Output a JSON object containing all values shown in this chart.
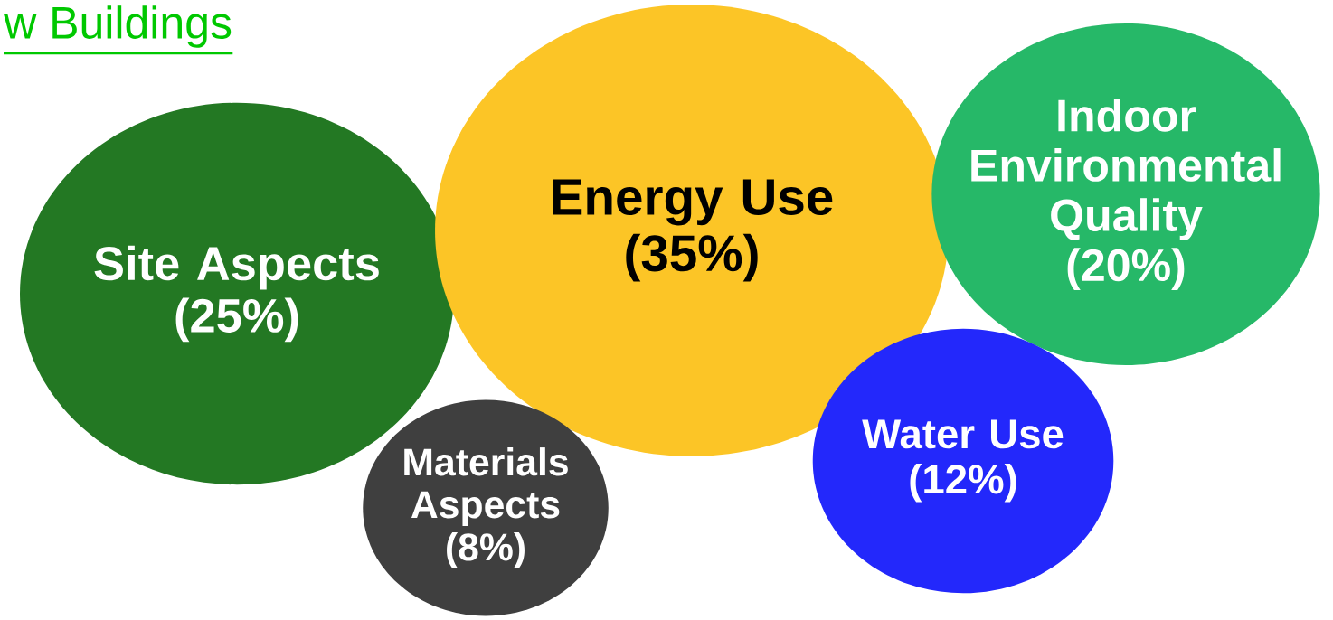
{
  "chart_data": {
    "type": "other",
    "title": "w Buildings",
    "categories": [
      "Site Aspects",
      "Energy Use",
      "Indoor Environmental Quality",
      "Water Use",
      "Materials Aspects"
    ],
    "values": [
      25,
      35,
      20,
      12,
      8
    ],
    "value_labels": [
      "(25%)",
      "(35%)",
      "(20%)",
      "(12%)",
      "(8%)"
    ],
    "colors": [
      "#237823",
      "#fcc526",
      "#26b868",
      "#2328fb",
      "#3f3f3f"
    ]
  }
}
